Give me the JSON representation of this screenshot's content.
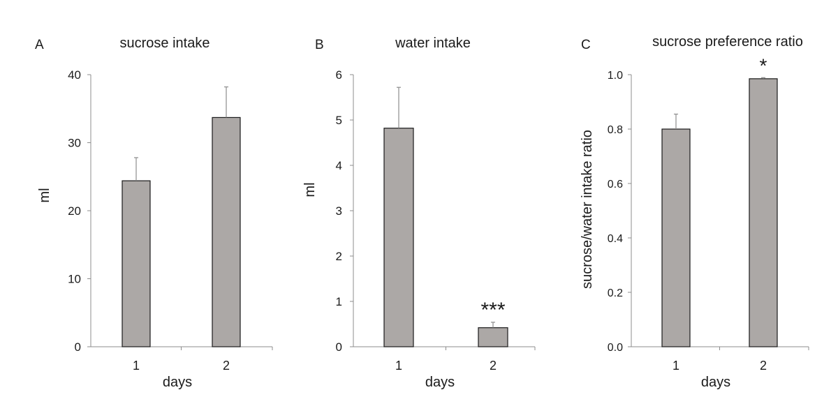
{
  "bar_color": "#aca8a6",
  "chart_data": [
    {
      "panel": "A",
      "type": "bar",
      "title": "sucrose intake",
      "xlabel": "days",
      "ylabel": "ml",
      "categories": [
        "1",
        "2"
      ],
      "values": [
        24.4,
        33.7
      ],
      "errors": [
        3.4,
        4.5
      ],
      "significance": [
        "",
        ""
      ],
      "ylim": [
        0,
        40
      ],
      "yticks": [
        "0",
        "10",
        "20",
        "30",
        "40"
      ]
    },
    {
      "panel": "B",
      "type": "bar",
      "title": "water intake",
      "xlabel": "days",
      "ylabel": "ml",
      "categories": [
        "1",
        "2"
      ],
      "values": [
        4.82,
        0.42
      ],
      "errors": [
        0.9,
        0.12
      ],
      "significance": [
        "",
        "***"
      ],
      "ylim": [
        0,
        6
      ],
      "yticks": [
        "0",
        "1",
        "2",
        "3",
        "4",
        "5",
        "6"
      ]
    },
    {
      "panel": "C",
      "type": "bar",
      "title": "sucrose preference ratio",
      "xlabel": "days",
      "ylabel": "sucrose/water intake ratio",
      "categories": [
        "1",
        "2"
      ],
      "values": [
        0.8,
        0.985
      ],
      "errors": [
        0.055,
        0.004
      ],
      "significance": [
        "",
        "*"
      ],
      "ylim": [
        0,
        1.0
      ],
      "yticks": [
        "0.0",
        "0.2",
        "0.4",
        "0.6",
        "0.8",
        "1.0"
      ]
    }
  ]
}
